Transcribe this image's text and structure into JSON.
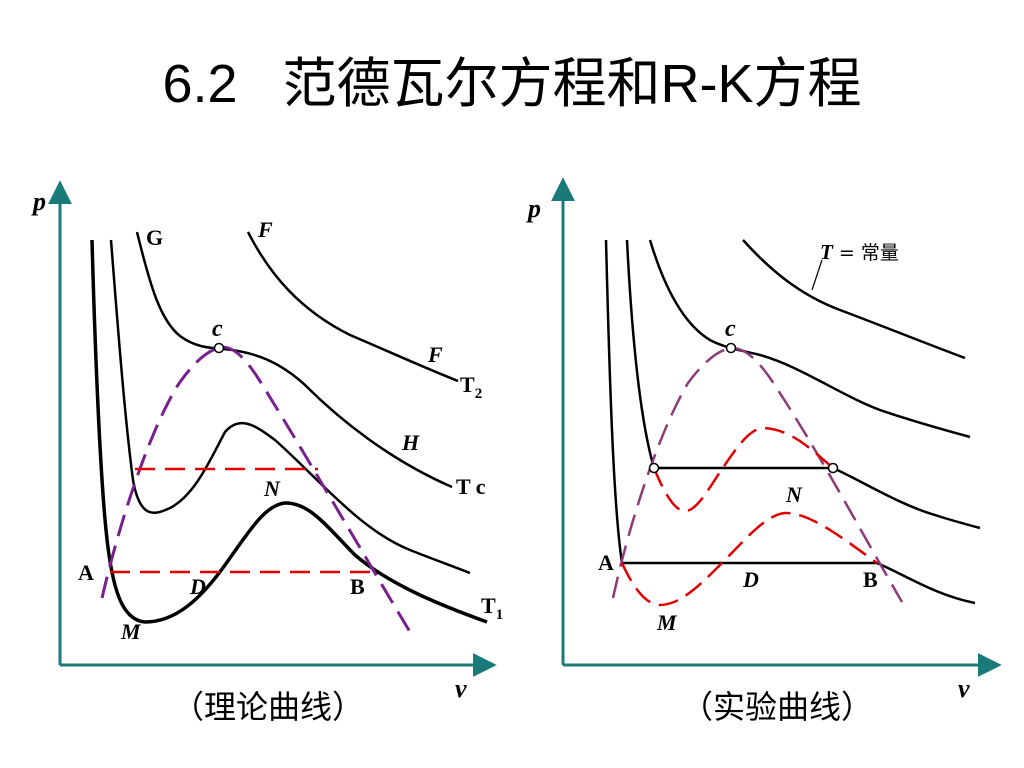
{
  "slide": {
    "title": "6.2   范德瓦尔方程和R-K方程"
  },
  "colors": {
    "axis": "#1a7a7a",
    "curve": "#000000",
    "dome_theory": "#7a1f8f",
    "dome_experiment": "#8c3a78",
    "tie_line_dashed": "#e00000",
    "experimental_loop": "#e00000"
  },
  "left_diagram": {
    "caption": "（理论曲线）",
    "y_axis_label": "p",
    "x_axis_label": "v",
    "point_labels": {
      "G": "G",
      "F_top": "F",
      "F_mid": "F",
      "c": "c",
      "T2_main": "T",
      "T2_sub": "2",
      "H": "H",
      "Tc": "T c",
      "N": "N",
      "A": "A",
      "D": "D",
      "B": "B",
      "M": "M",
      "T1_main": "T",
      "T1_sub": "1"
    }
  },
  "right_diagram": {
    "caption": "（实验曲线）",
    "y_axis_label": "p",
    "x_axis_label": "v",
    "isotherm_label_main": "T",
    "isotherm_label_rest": " = 常量",
    "point_labels": {
      "c": "c",
      "N": "N",
      "A": "A",
      "D": "D",
      "B": "B",
      "M": "M"
    }
  }
}
